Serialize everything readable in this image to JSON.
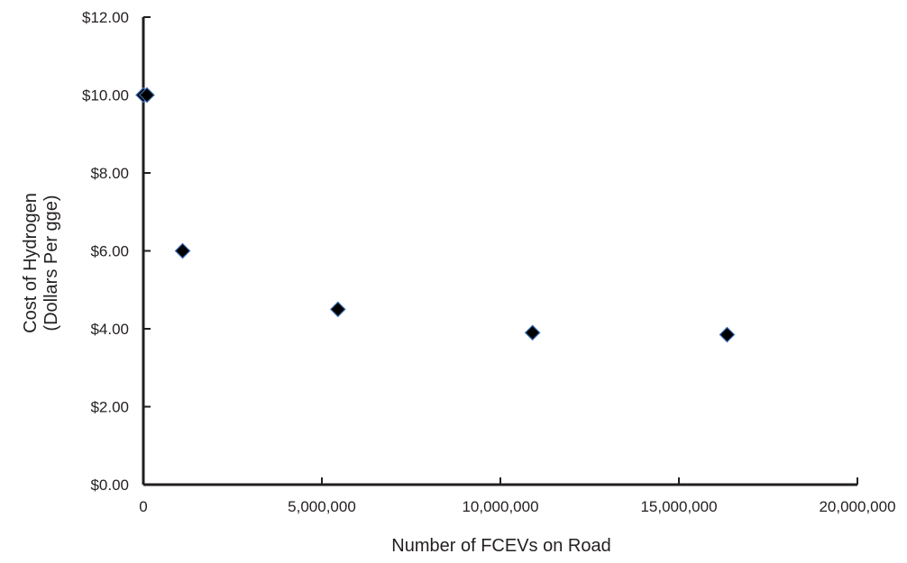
{
  "chart_data": {
    "type": "scatter",
    "xlabel": "Number of FCEVs on Road",
    "ylabel_lines": [
      "Cost of Hydrogen",
      "(Dollars Per gge)"
    ],
    "xlim": [
      0,
      20000000
    ],
    "ylim": [
      0,
      12
    ],
    "x_ticks": [
      0,
      5000000,
      10000000,
      15000000,
      20000000
    ],
    "x_tick_labels": [
      "0",
      "5,000,000",
      "10,000,000",
      "15,000,000",
      "20,000,000"
    ],
    "y_ticks": [
      0,
      2,
      4,
      6,
      8,
      10,
      12
    ],
    "y_tick_labels": [
      "$0.00",
      "$2.00",
      "$4.00",
      "$6.00",
      "$8.00",
      "$10.00",
      "$12.00"
    ],
    "grid": false,
    "legend": "none",
    "marker": "diamond",
    "points": [
      {
        "x": 0,
        "y": 10.0
      },
      {
        "x": 100000,
        "y": 10.0
      },
      {
        "x": 1100000,
        "y": 6.0
      },
      {
        "x": 5450000,
        "y": 4.5
      },
      {
        "x": 10900000,
        "y": 3.9
      },
      {
        "x": 16350000,
        "y": 3.85
      }
    ],
    "colors": {
      "marker_fill": "#000000",
      "marker_edge": "#3a6fb5",
      "axis": "#231f20"
    }
  }
}
